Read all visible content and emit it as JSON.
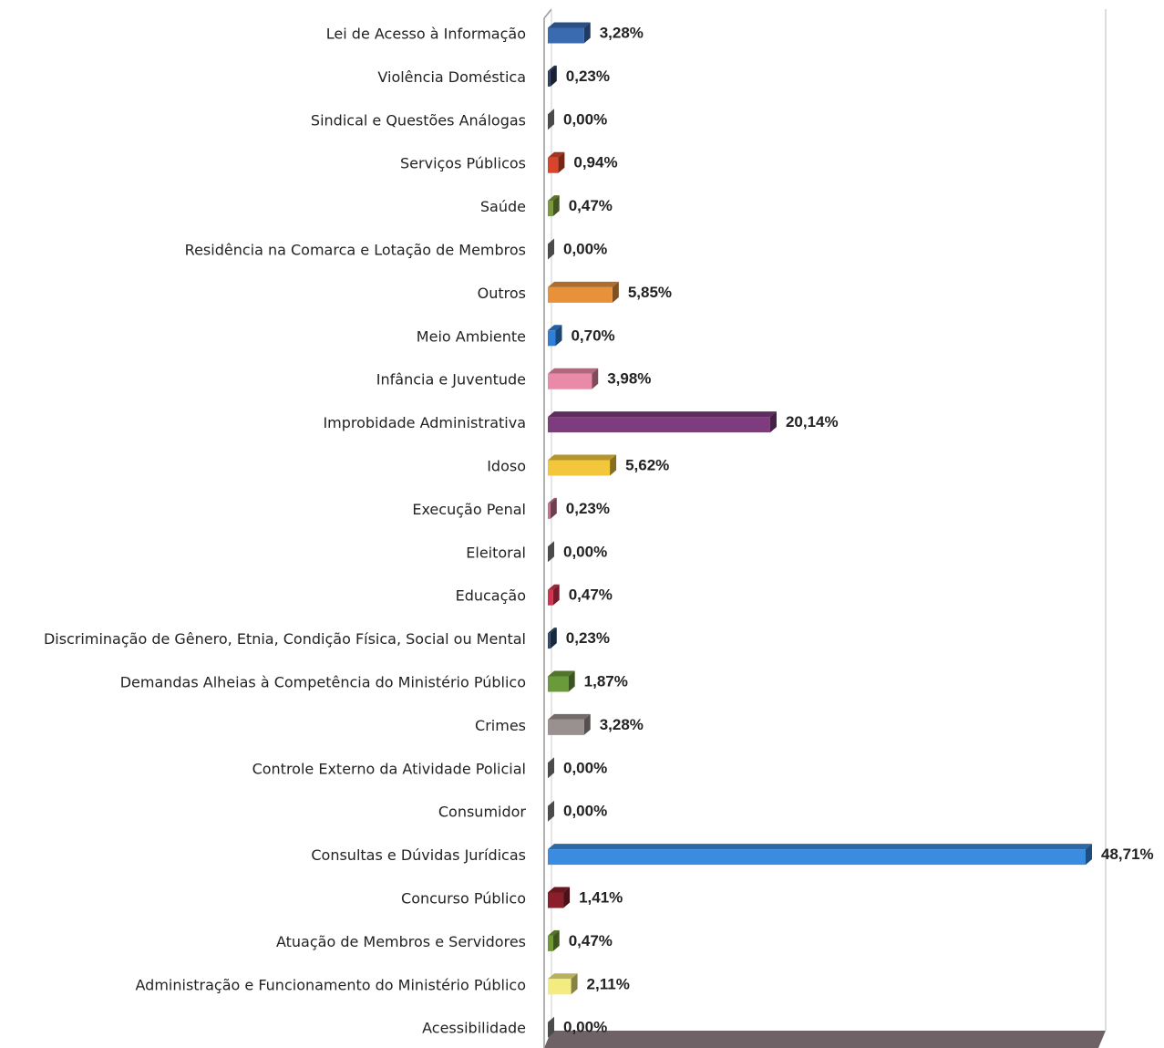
{
  "chart_data": {
    "type": "bar",
    "orientation": "horizontal",
    "categories": [
      "Lei de Acesso à Informação",
      "Violência Doméstica",
      "Sindical e Questões Análogas",
      "Serviços Públicos",
      "Saúde",
      "Residência na Comarca e Lotação de Membros",
      "Outros",
      "Meio Ambiente",
      "Infância e Juventude",
      "Improbidade Administrativa",
      "Idoso",
      "Execução Penal",
      "Eleitoral",
      "Educação",
      "Discriminação de Gênero, Etnia, Condição Física, Social ou Mental",
      "Demandas Alheias à Competência do Ministério Público",
      "Crimes",
      "Controle Externo da Atividade Policial",
      "Consumidor",
      "Consultas e Dúvidas Jurídicas",
      "Concurso Público",
      "Atuação de Membros e Servidores",
      "Administração e Funcionamento do Ministério Público",
      "Acessibilidade"
    ],
    "values": [
      3.28,
      0.23,
      0,
      0.94,
      0.47,
      0,
      5.85,
      0.7,
      3.98,
      20.14,
      5.62,
      0.23,
      0,
      0.47,
      0.23,
      1.87,
      3.28,
      0,
      0,
      48.71,
      1.41,
      0.47,
      2.11,
      0
    ],
    "value_labels": [
      "3,28%",
      "0,23%",
      "0,00%",
      "0,94%",
      "0,47%",
      "0,00%",
      "5,85%",
      "0,70%",
      "3,98%",
      "20,14%",
      "5,62%",
      "0,23%",
      "0,00%",
      "0,47%",
      "0,23%",
      "1,87%",
      "3,28%",
      "0,00%",
      "0,00%",
      "48,71%",
      "1,41%",
      "0,47%",
      "2,11%",
      "0,00%"
    ],
    "colors": [
      "#3a6bb0",
      "#2c3e60",
      "#888888",
      "#d9442a",
      "#7a9a3a",
      "#888888",
      "#e8913a",
      "#2f7fd6",
      "#e98aa8",
      "#7e3b7e",
      "#f2c73c",
      "#c9708a",
      "#888888",
      "#d6304f",
      "#2b4a70",
      "#6b9a3a",
      "#9a9090",
      "#888888",
      "#888888",
      "#3a8ce0",
      "#8a1e2a",
      "#6f9a30",
      "#f4ec80",
      "#888888"
    ]
  }
}
